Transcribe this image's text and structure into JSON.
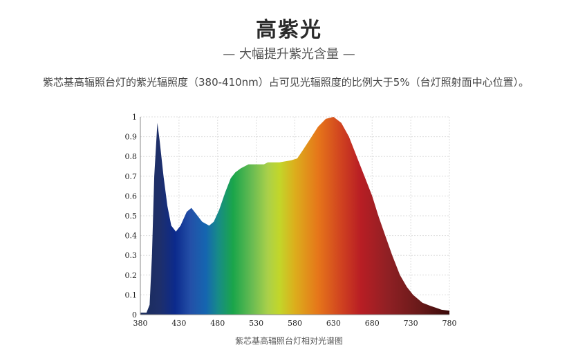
{
  "header": {
    "title": "高紫光",
    "subtitle": "— 大幅提升紫光含量 —"
  },
  "description": "紫芯基高辐照台灯的紫光辐照度（380-410nm）占可见光辐照度的比例大于5%（台灯照射面中心位置）。",
  "chart_data": {
    "type": "area",
    "title": "紫芯基高辐照台灯相对光谱图",
    "xlabel": "",
    "ylabel": "",
    "xlim": [
      380,
      780
    ],
    "ylim": [
      0,
      1
    ],
    "grid": true,
    "x_ticks": [
      "380",
      "430",
      "480",
      "530",
      "580",
      "630",
      "680",
      "730",
      "780"
    ],
    "y_ticks": [
      "0",
      "0.1",
      "0.2",
      "0.3",
      "0.4",
      "0.5",
      "0.6",
      "0.7",
      "0.8",
      "0.9",
      "1"
    ],
    "series": [
      {
        "name": "relative spectrum",
        "x": [
          380,
          388,
          392,
          395,
          398,
          402,
          405,
          410,
          415,
          420,
          426,
          432,
          440,
          446,
          452,
          460,
          469,
          475,
          482,
          490,
          497,
          503,
          510,
          520,
          530,
          540,
          545,
          550,
          560,
          575,
          583,
          590,
          600,
          610,
          620,
          630,
          640,
          650,
          660,
          670,
          680,
          688,
          697,
          706,
          716,
          725,
          733,
          745,
          755,
          770,
          780
        ],
        "y": [
          0.01,
          0.01,
          0.05,
          0.3,
          0.7,
          0.97,
          0.88,
          0.7,
          0.55,
          0.45,
          0.42,
          0.45,
          0.52,
          0.54,
          0.51,
          0.47,
          0.45,
          0.47,
          0.53,
          0.62,
          0.69,
          0.72,
          0.74,
          0.76,
          0.76,
          0.76,
          0.77,
          0.77,
          0.77,
          0.78,
          0.79,
          0.83,
          0.89,
          0.95,
          0.99,
          1.0,
          0.97,
          0.9,
          0.8,
          0.7,
          0.6,
          0.5,
          0.4,
          0.3,
          0.2,
          0.14,
          0.1,
          0.06,
          0.045,
          0.025,
          0.02
        ]
      }
    ],
    "fill_gradient": [
      {
        "wl": 380,
        "color": "#1c2d5a"
      },
      {
        "wl": 405,
        "color": "#1e2f6a"
      },
      {
        "wl": 425,
        "color": "#0c2a8c"
      },
      {
        "wl": 445,
        "color": "#2350a8"
      },
      {
        "wl": 465,
        "color": "#1566b0"
      },
      {
        "wl": 480,
        "color": "#178a8a"
      },
      {
        "wl": 500,
        "color": "#1aa54a"
      },
      {
        "wl": 525,
        "color": "#6abc52"
      },
      {
        "wl": 545,
        "color": "#aad04a"
      },
      {
        "wl": 560,
        "color": "#c2d62a"
      },
      {
        "wl": 580,
        "color": "#dcae1c"
      },
      {
        "wl": 610,
        "color": "#e6761a"
      },
      {
        "wl": 640,
        "color": "#d04220"
      },
      {
        "wl": 665,
        "color": "#b81e24"
      },
      {
        "wl": 700,
        "color": "#902024"
      },
      {
        "wl": 740,
        "color": "#6a1a1a"
      },
      {
        "wl": 780,
        "color": "#3a0a0a"
      }
    ]
  }
}
